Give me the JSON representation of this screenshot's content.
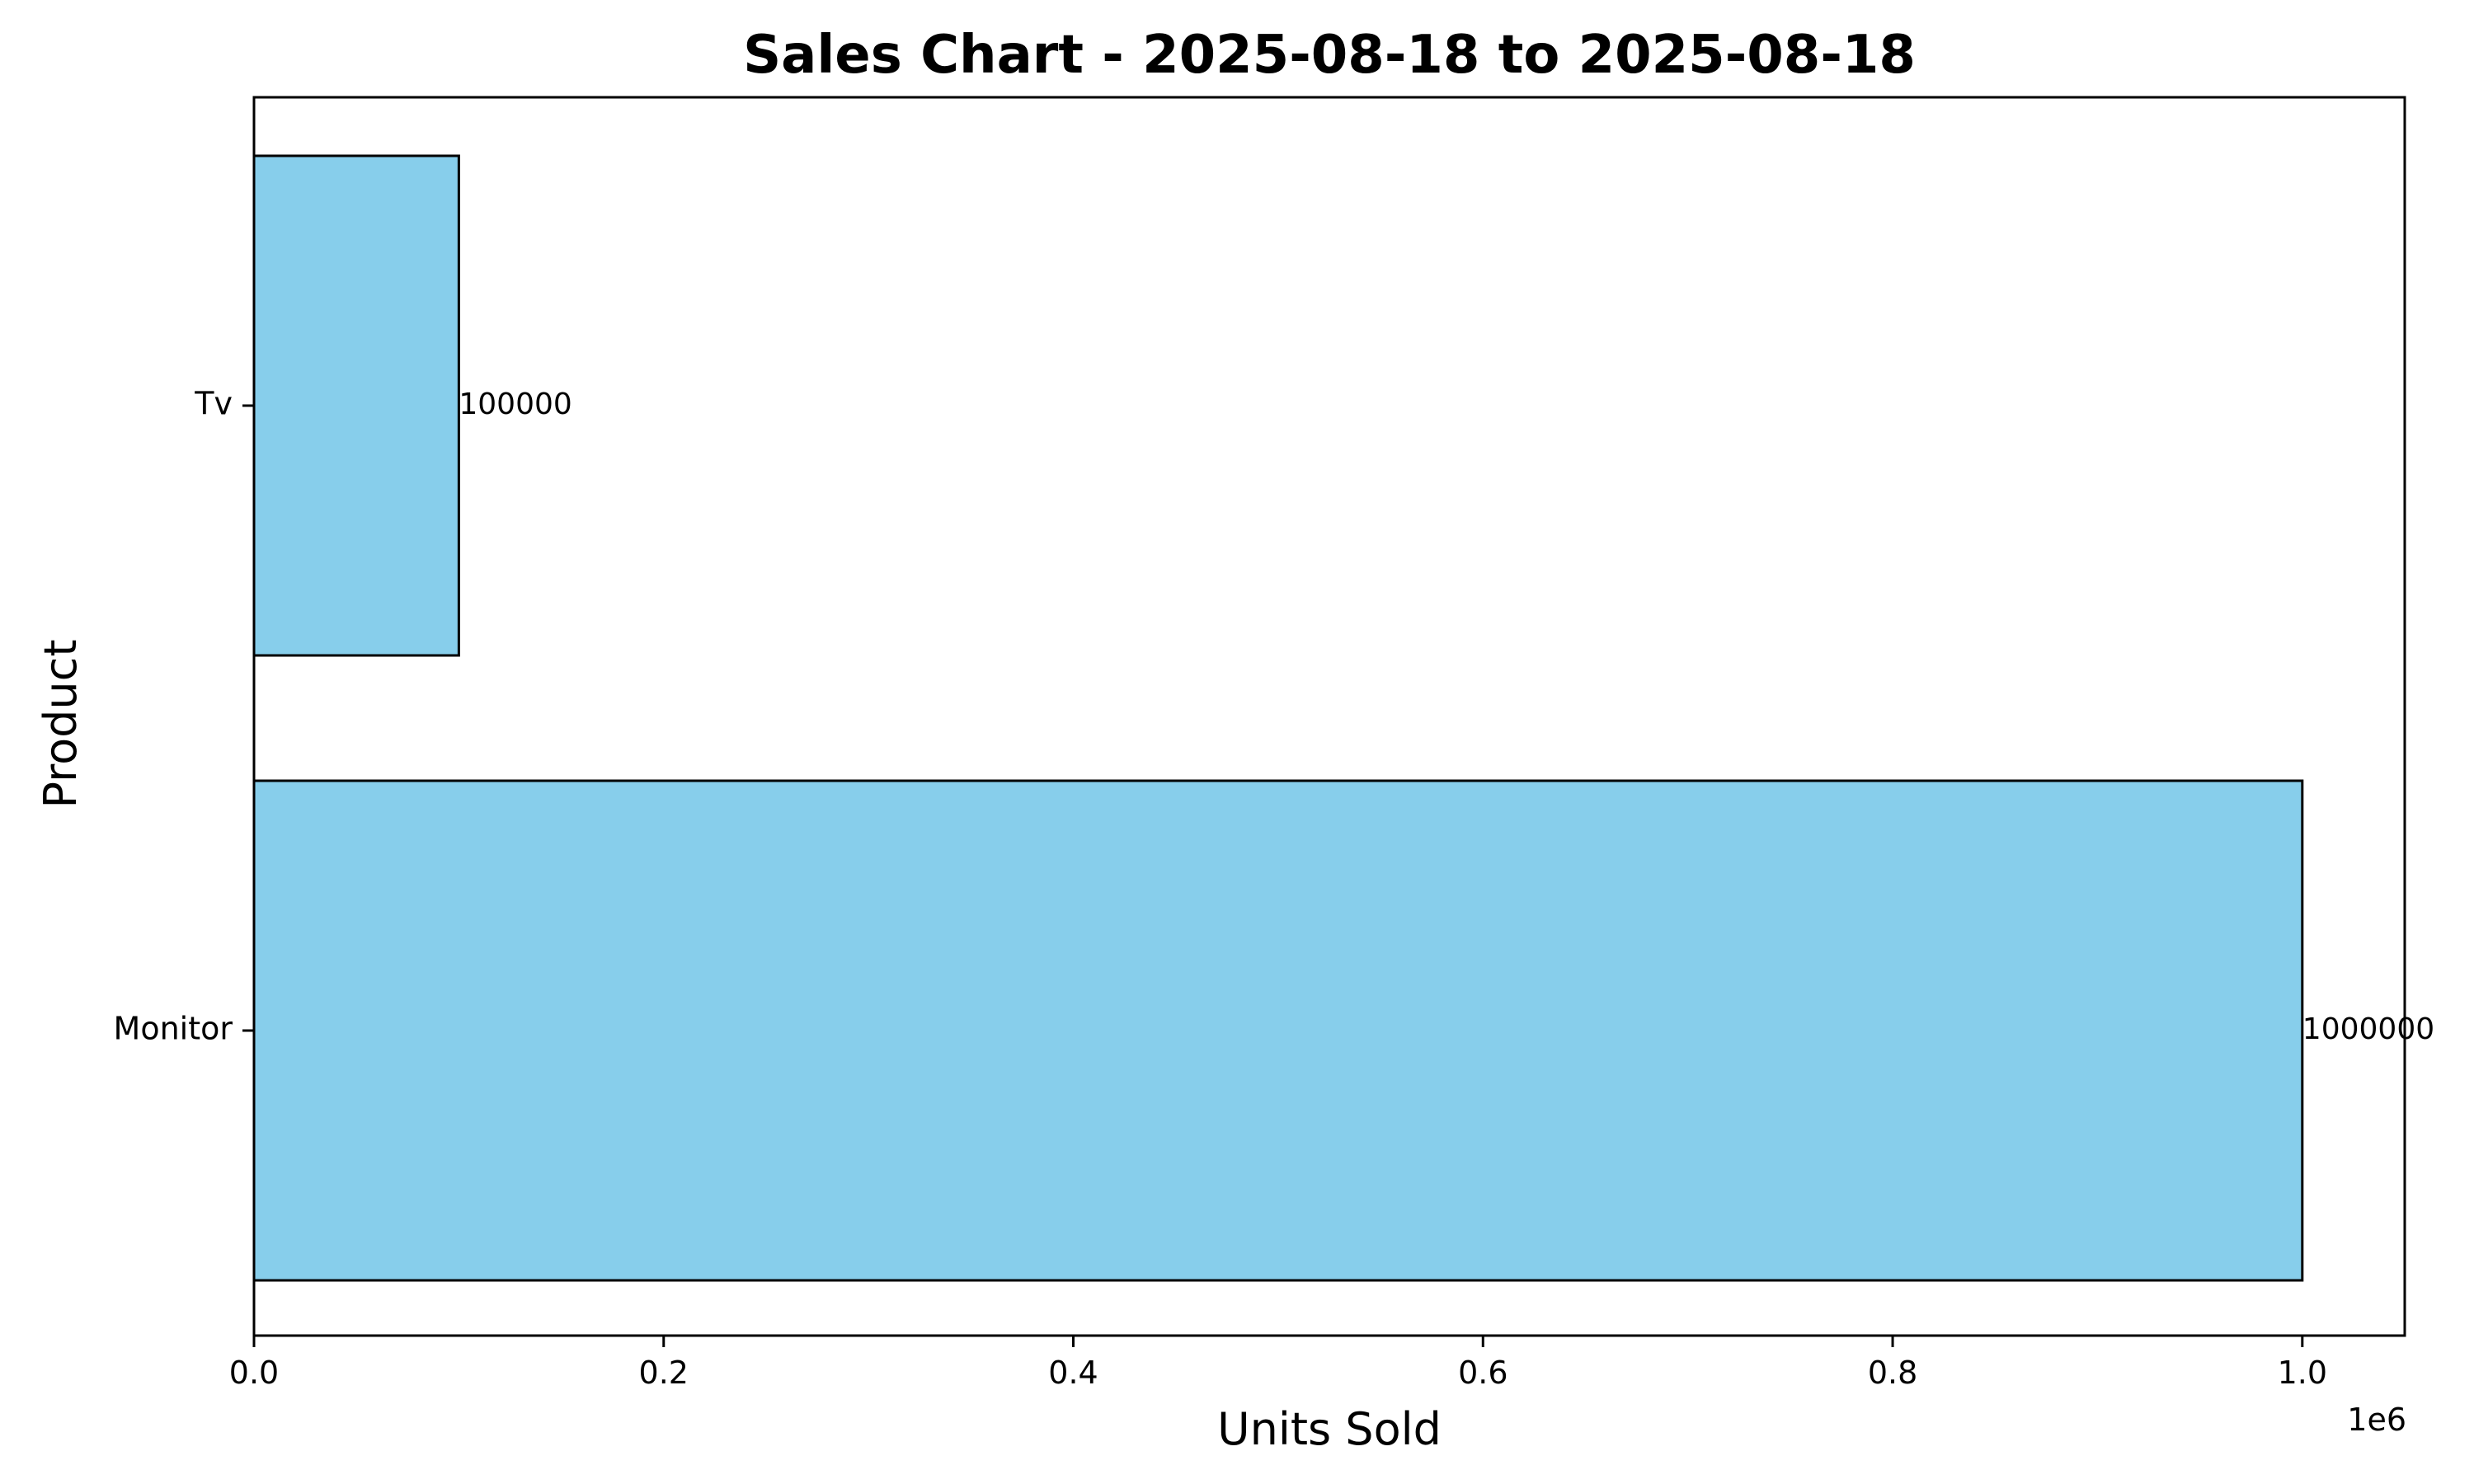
{
  "chart_data": {
    "type": "bar",
    "orientation": "horizontal",
    "title": "Sales Chart - 2025-08-18 to 2025-08-18",
    "xlabel": "Units Sold",
    "ylabel": "Product",
    "x_scale_label": "1e6",
    "categories": [
      "Monitor",
      "Tv"
    ],
    "values": [
      1000000,
      100000
    ],
    "value_labels": [
      "1000000",
      "100000"
    ],
    "x_ticks": [
      0,
      200000,
      400000,
      600000,
      800000,
      1000000
    ],
    "x_tick_labels": [
      "0.0",
      "0.2",
      "0.4",
      "0.6",
      "0.8",
      "1.0"
    ],
    "xlim": [
      0,
      1050000
    ],
    "grid": false,
    "legend": "none",
    "bar_color": "#87CEEB",
    "bar_edge_color": "#000000"
  }
}
